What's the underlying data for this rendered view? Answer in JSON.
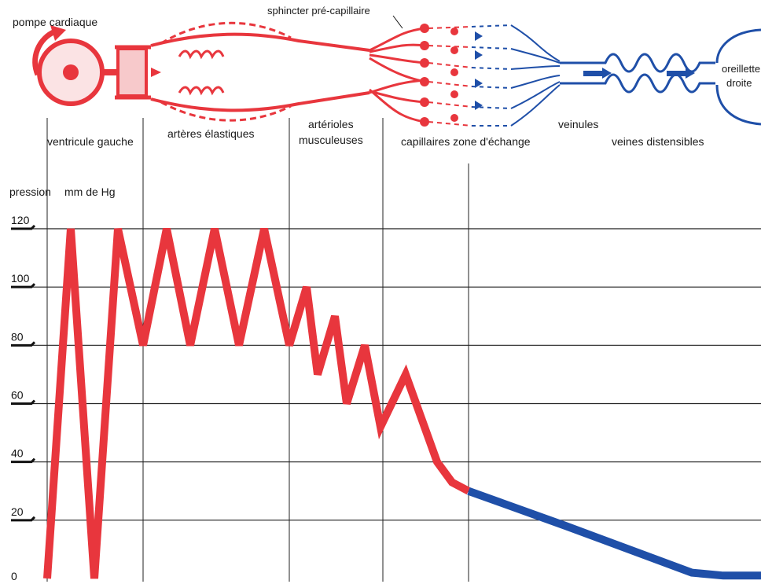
{
  "labels": {
    "pump": "pompe cardiaque",
    "sphincter": "sphincter pré-capillaire",
    "oreillette_line1": "oreillette",
    "oreillette_line2": "droite",
    "ventricule": "ventricule gauche",
    "arteres": "artères élastiques",
    "arterioles_line1": "artérioles",
    "arterioles_line2": "musculeuses",
    "capillaires": "capillaires zone d'échange",
    "veinules": "veinules",
    "veines": "veines distensibles",
    "pression": "pression",
    "unit": "mm de Hg"
  },
  "colors": {
    "arterial": "#e8363d",
    "venous": "#1f4fa8",
    "grid": "#222222"
  },
  "chart_data": {
    "type": "line",
    "ylim": [
      0,
      120
    ],
    "yticks": [
      "0",
      "20",
      "40",
      "60",
      "80",
      "100",
      "120"
    ],
    "grid": true,
    "series": [
      {
        "segment": "arterial",
        "points": [
          [
            0,
            0
          ],
          [
            1,
            120
          ],
          [
            2,
            0
          ],
          [
            3,
            120
          ],
          [
            4,
            80
          ],
          [
            5,
            120
          ],
          [
            6,
            80
          ],
          [
            7,
            120
          ],
          [
            8,
            80
          ],
          [
            9,
            120
          ],
          [
            10,
            80
          ],
          [
            11,
            100
          ],
          [
            12,
            70
          ],
          [
            13,
            90
          ],
          [
            14,
            60
          ],
          [
            15,
            80
          ],
          [
            16,
            52
          ],
          [
            17,
            70
          ],
          [
            18,
            55
          ],
          [
            19,
            40
          ],
          [
            20,
            33
          ],
          [
            21,
            30
          ]
        ]
      },
      {
        "segment": "venous",
        "points": [
          [
            21,
            30
          ],
          [
            22,
            18
          ],
          [
            23,
            2
          ],
          [
            24,
            1
          ],
          [
            25,
            1
          ]
        ]
      }
    ]
  }
}
